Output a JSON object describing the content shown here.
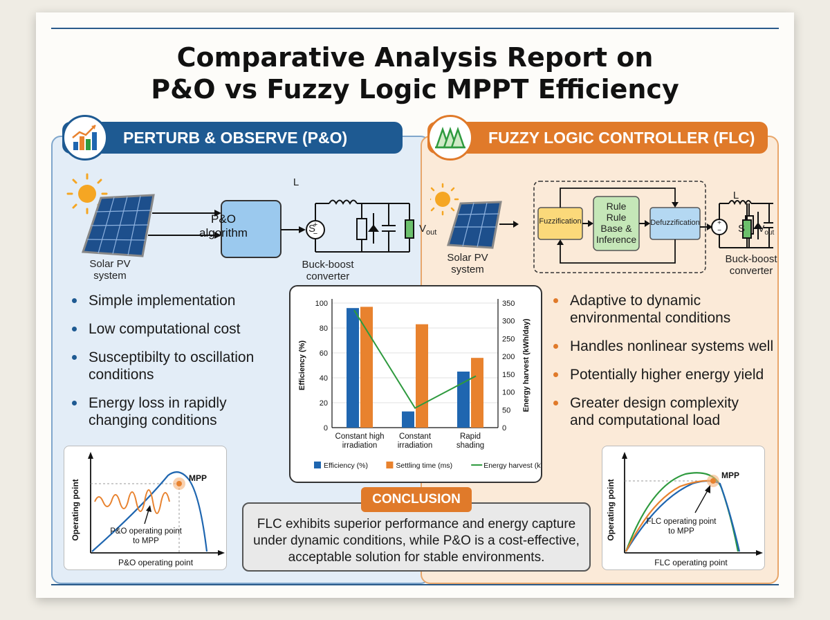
{
  "title": {
    "line1": "Comparative Analysis Report on",
    "line2": "P&O vs Fuzzy Logic MPPT Efficiency"
  },
  "left": {
    "header": "PERTURB & OBSERVE (P&O)",
    "pv_label": [
      "Solar PV",
      "system"
    ],
    "algo_box": [
      "P&O",
      "algorithm"
    ],
    "converter_label": [
      "Buck-boost",
      "converter"
    ],
    "L": "L",
    "S": "S",
    "vout": "V",
    "vout_sub": "out",
    "bullets": [
      [
        "Simple implementation"
      ],
      [
        "Low computational cost"
      ],
      [
        "Susceptibilty to oscillation",
        "conditions"
      ],
      [
        "Energy loss in rapidly",
        "changing conditions"
      ]
    ],
    "curve": {
      "ylabel": "Operating point",
      "xlabel": "P&O operating point",
      "mpp": "MPP",
      "annotation": [
        "P&O operating point",
        "to MPP"
      ]
    }
  },
  "right": {
    "header": "FUZZY LOGIC CONTROLLER (FLC)",
    "pv_label": [
      "Solar PV",
      "system"
    ],
    "fuzzification": "Fuzzification",
    "rule_box": [
      "Rule",
      "Rule",
      "Base &",
      "Inference"
    ],
    "defuzzification": "Defuzzification",
    "converter_label": [
      "Buck-boost",
      "converter"
    ],
    "L": "L",
    "S": "S",
    "vout": "V",
    "vout_sub": "out",
    "bullets": [
      [
        "Adaptive to dynamic",
        "environmental conditions"
      ],
      [
        "Handles nonlinear systems well"
      ],
      [
        "Potentially higher energy yield"
      ],
      [
        "Greater design complexity",
        "and computational load"
      ]
    ],
    "curve": {
      "ylabel": "Operating point",
      "xlabel": "FLC operating point",
      "mpp": "MPP",
      "annotation": [
        "FLC operating point",
        "to MPP"
      ]
    }
  },
  "chart_data": {
    "type": "bar",
    "categories": [
      [
        "Constant high",
        "irradiation"
      ],
      [
        "Constant",
        "irradiation"
      ],
      [
        "Rapid",
        "shading"
      ]
    ],
    "series": [
      {
        "name": "Efficiency (%)",
        "axis": "left",
        "type": "bar",
        "color": "#1f66b0",
        "values": [
          96,
          13,
          45
        ]
      },
      {
        "name": "Settling time (ms)",
        "axis": "left",
        "type": "bar",
        "color": "#e8822e",
        "values": [
          97,
          83,
          56
        ]
      },
      {
        "name": "Energy harvest (kWh/day)",
        "axis": "right",
        "type": "line",
        "color": "#2e9a3e",
        "values": [
          330,
          55,
          145
        ]
      }
    ],
    "ylabel": "Efficiency (%)",
    "y2label": "Energy harvest (kWh/day)",
    "ylim": [
      0,
      100
    ],
    "yticks": [
      0,
      20,
      40,
      60,
      80,
      100
    ],
    "y2lim": [
      0,
      350
    ],
    "y2ticks": [
      0,
      50,
      100,
      150,
      200,
      250,
      300,
      350
    ],
    "legend": "bottom"
  },
  "conclusion": {
    "title": "CONCLUSION",
    "lines": [
      "FLC exhibits superior performance and energy capture",
      "under dynamic conditions, while P&O is a cost-effective,",
      "acceptable solution for stable environments."
    ]
  }
}
